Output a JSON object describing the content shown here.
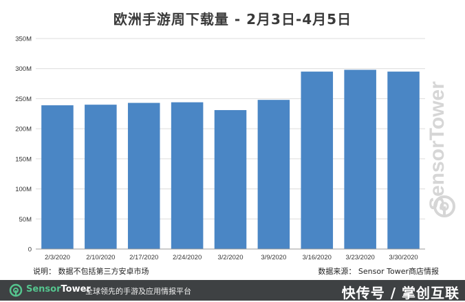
{
  "chart_data": {
    "type": "bar",
    "title": "欧洲手游周下载量 - 2月3日-4月5日",
    "categories": [
      "2/3/2020",
      "2/10/2020",
      "2/17/2020",
      "2/24/2020",
      "3/2/2020",
      "3/9/2020",
      "3/16/2020",
      "3/23/2020",
      "3/30/2020"
    ],
    "values": [
      239,
      240,
      243,
      244,
      231,
      248,
      295,
      298,
      295
    ],
    "unit": "M",
    "ylim": [
      0,
      350
    ],
    "yticks": [
      0,
      50,
      100,
      150,
      200,
      250,
      300,
      350
    ],
    "ytick_labels": [
      "0",
      "50M",
      "100M",
      "150M",
      "200M",
      "250M",
      "300M",
      "350M"
    ],
    "grid": true,
    "bar_color": "#4a86c5",
    "xlabel": "",
    "ylabel": ""
  },
  "notes": {
    "left": "说明：  数据不包括第三方安卓市场",
    "right": "数据来源：  Sensor Tower商店情报"
  },
  "footer": {
    "brand_part1": "Sensor",
    "brand_part2": "Tower",
    "tagline": "全球领先的手游及应用情报平台",
    "overlay_text": "快传号 / 掌创互联",
    "background_color": "#3e4143",
    "brand_color": "#55c58f"
  },
  "watermark": {
    "text": "SensorTower"
  }
}
